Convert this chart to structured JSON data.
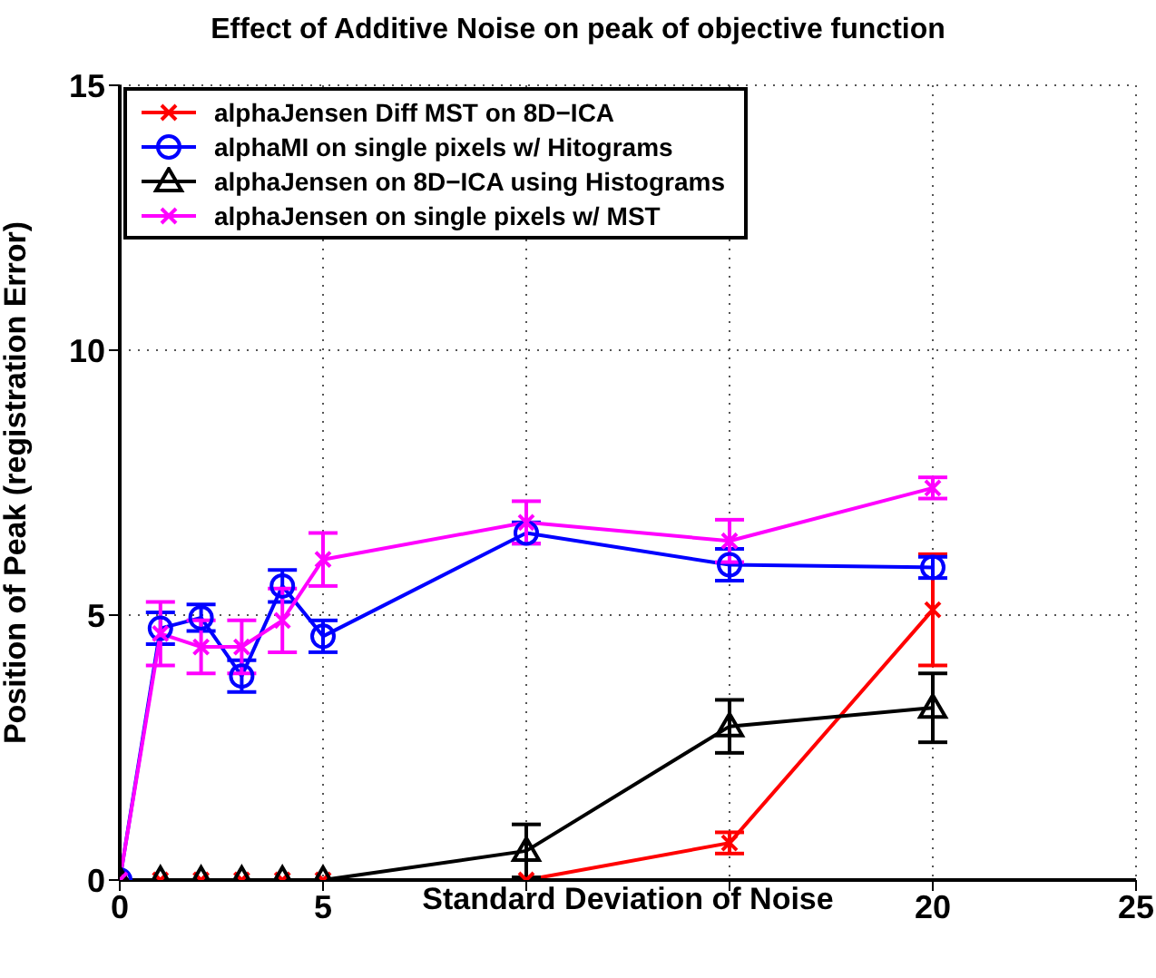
{
  "chart_data": {
    "type": "line",
    "title": "Effect of Additive Noise on peak of objective function",
    "xlabel": "Standard Deviation of Noise",
    "ylabel": "Position of Peak (registration Error)",
    "xlim": [
      0,
      25
    ],
    "xticks": [
      0,
      5,
      {
        "value": 10,
        "label": null
      },
      {
        "value": 15,
        "label": null
      },
      20,
      25
    ],
    "ylim": [
      0,
      15
    ],
    "yticks": [
      0,
      5,
      10,
      15
    ],
    "grid": true,
    "legend": "top left",
    "line_style": "solid",
    "x": [
      0,
      1,
      2,
      3,
      4,
      5,
      10,
      15,
      20
    ],
    "series": [
      {
        "name": "alphaJensen Diff MST on 8D−ICA",
        "color": "#ff0000",
        "marker": "cross",
        "values": [
          0,
          0,
          0,
          0,
          0,
          0,
          0,
          0.7,
          5.1
        ],
        "errors": [
          null,
          null,
          null,
          null,
          null,
          null,
          null,
          0.2,
          1.05
        ]
      },
      {
        "name": "alphaMI on single pixels w/ Hitograms",
        "color": "#0000ff",
        "marker": "circle",
        "values": [
          0,
          4.75,
          4.95,
          3.85,
          5.55,
          4.6,
          6.55,
          5.95,
          5.9
        ],
        "errors": [
          null,
          0.3,
          0.25,
          0.3,
          0.3,
          0.3,
          0.2,
          0.3,
          0.2
        ]
      },
      {
        "name": "alphaJensen on 8D−ICA using Histograms",
        "color": "#000000",
        "marker": "triangle",
        "values": [
          0,
          0,
          0,
          0,
          0,
          0,
          0.55,
          2.9,
          3.25
        ],
        "errors": [
          null,
          null,
          null,
          null,
          null,
          null,
          0.5,
          0.5,
          0.65
        ]
      },
      {
        "name": "alphaJensen on single pixels w/ MST",
        "color": "#ff00ff",
        "marker": "cross",
        "values": [
          0,
          4.65,
          4.4,
          4.4,
          4.9,
          6.05,
          6.75,
          6.4,
          7.4
        ],
        "errors": [
          null,
          0.6,
          0.5,
          0.5,
          0.6,
          0.5,
          0.4,
          0.4,
          0.2
        ]
      }
    ]
  }
}
